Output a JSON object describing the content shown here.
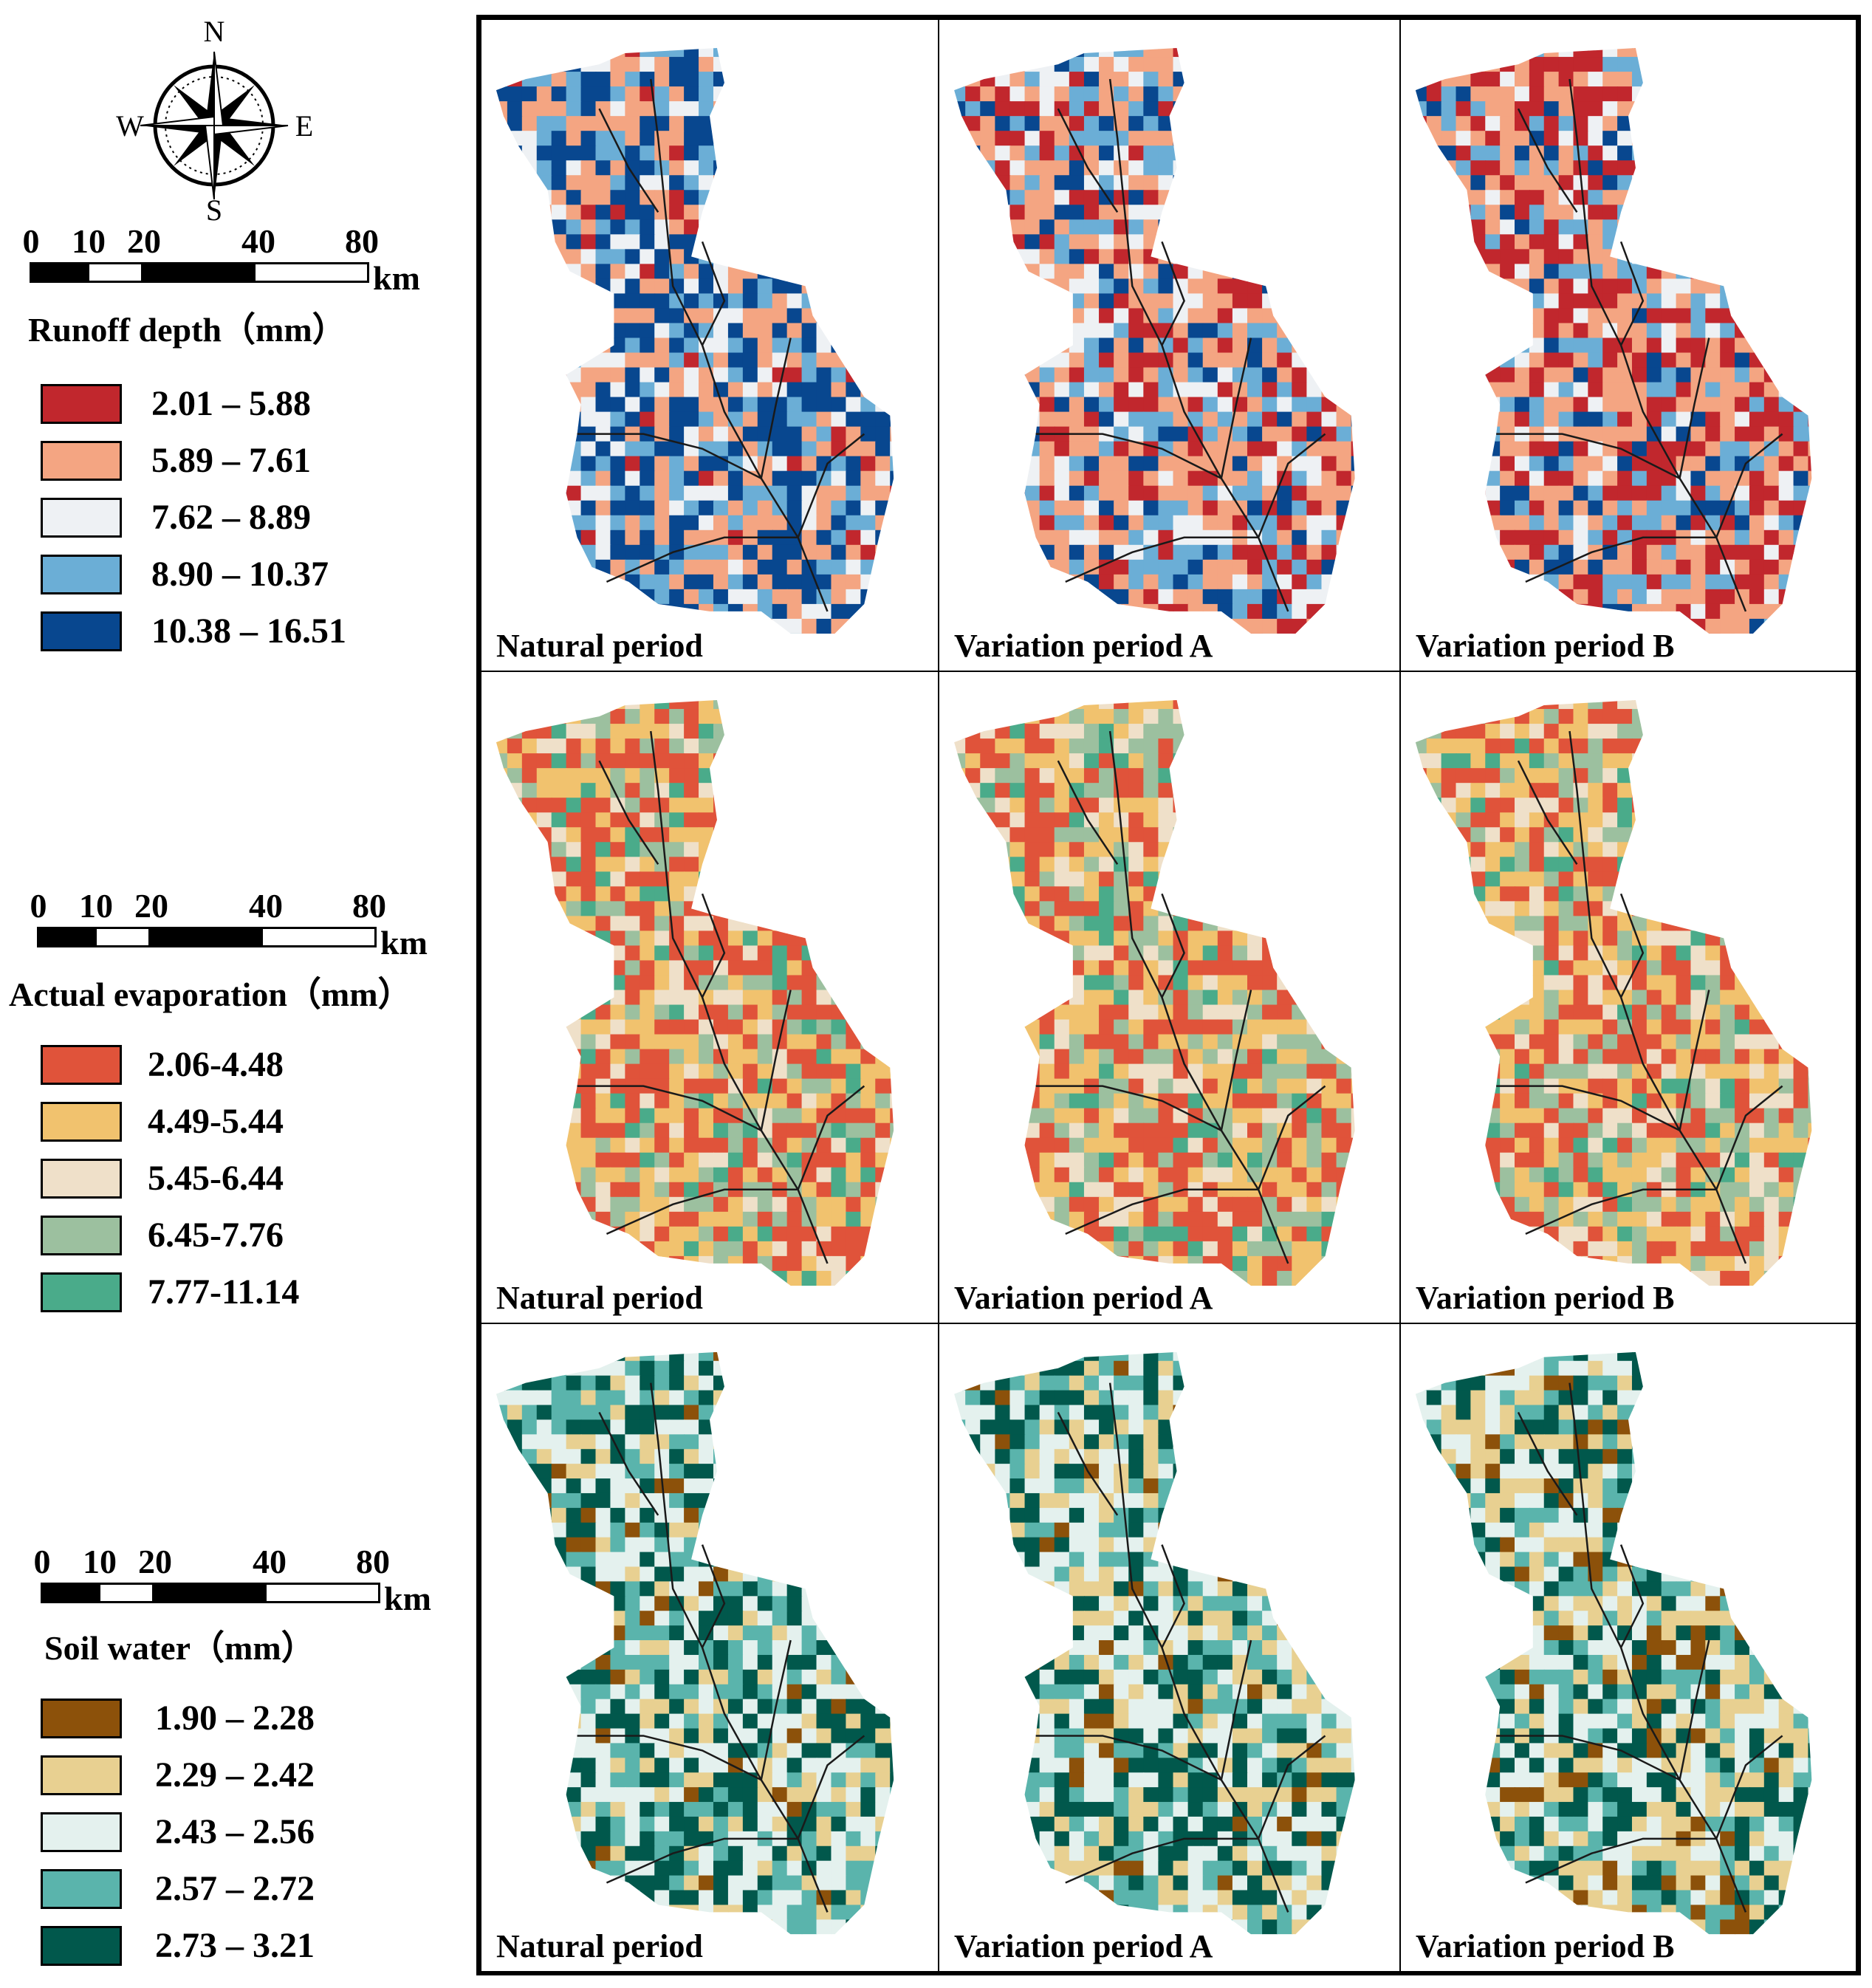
{
  "compass": {
    "n": "N",
    "s": "S",
    "e": "E",
    "w": "W"
  },
  "scale": {
    "ticks": [
      "0",
      "10",
      "20",
      "40",
      "80"
    ],
    "unit": "km"
  },
  "legends": [
    {
      "title": "Runoff depth（mm）",
      "classes": [
        {
          "label": "2.01 – 5.88",
          "color": "#c1272d"
        },
        {
          "label": "5.89 – 7.61",
          "color": "#f4a582"
        },
        {
          "label": "7.62 – 8.89",
          "color": "#eef1f4"
        },
        {
          "label": "8.90 – 10.37",
          "color": "#6baed6"
        },
        {
          "label": "10.38 – 16.51",
          "color": "#08478f"
        }
      ]
    },
    {
      "title": "Actual evaporation（mm）",
      "classes": [
        {
          "label": "2.06-4.48",
          "color": "#e0533a"
        },
        {
          "label": "4.49-5.44",
          "color": "#f1c26e"
        },
        {
          "label": "5.45-6.44",
          "color": "#efe0c9"
        },
        {
          "label": "6.45-7.76",
          "color": "#9cc09f"
        },
        {
          "label": "7.77-11.14",
          "color": "#4aab8a"
        }
      ]
    },
    {
      "title": "Soil water（mm）",
      "classes": [
        {
          "label": "1.90 – 2.28",
          "color": "#8c510a"
        },
        {
          "label": "2.29 – 2.42",
          "color": "#e8d091"
        },
        {
          "label": "2.43 – 2.56",
          "color": "#e4f1ee"
        },
        {
          "label": "2.57 – 2.72",
          "color": "#5ab4ac"
        },
        {
          "label": "2.73 – 3.21",
          "color": "#01584c"
        }
      ]
    }
  ],
  "periods": [
    "Natural period",
    "Variation period A",
    "Variation period B"
  ],
  "map_weights": [
    [
      [
        0.05,
        0.25,
        0.15,
        0.2,
        0.35
      ],
      [
        0.2,
        0.35,
        0.15,
        0.18,
        0.12
      ],
      [
        0.3,
        0.35,
        0.1,
        0.17,
        0.08
      ]
    ],
    [
      [
        0.35,
        0.25,
        0.14,
        0.18,
        0.08
      ],
      [
        0.33,
        0.25,
        0.15,
        0.19,
        0.08
      ],
      [
        0.33,
        0.26,
        0.16,
        0.18,
        0.07
      ]
    ],
    [
      [
        0.04,
        0.14,
        0.3,
        0.22,
        0.3
      ],
      [
        0.05,
        0.2,
        0.3,
        0.2,
        0.25
      ],
      [
        0.1,
        0.25,
        0.25,
        0.18,
        0.22
      ]
    ]
  ]
}
